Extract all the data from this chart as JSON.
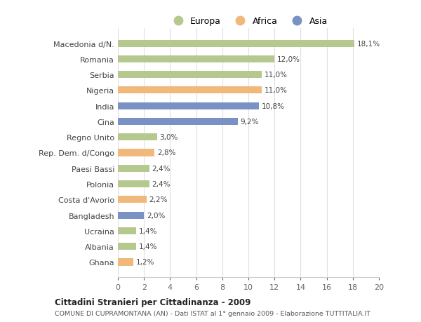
{
  "categories": [
    "Macedonia d/N.",
    "Romania",
    "Serbia",
    "Nigeria",
    "India",
    "Cina",
    "Regno Unito",
    "Rep. Dem. d/Congo",
    "Paesi Bassi",
    "Polonia",
    "Costa d'Avorio",
    "Bangladesh",
    "Ucraina",
    "Albania",
    "Ghana"
  ],
  "values": [
    18.1,
    12.0,
    11.0,
    11.0,
    10.8,
    9.2,
    3.0,
    2.8,
    2.4,
    2.4,
    2.2,
    2.0,
    1.4,
    1.4,
    1.2
  ],
  "labels": [
    "18,1%",
    "12,0%",
    "11,0%",
    "11,0%",
    "10,8%",
    "9,2%",
    "3,0%",
    "2,8%",
    "2,4%",
    "2,4%",
    "2,2%",
    "2,0%",
    "1,4%",
    "1,4%",
    "1,2%"
  ],
  "continent": [
    "Europa",
    "Europa",
    "Europa",
    "Africa",
    "Asia",
    "Asia",
    "Europa",
    "Africa",
    "Europa",
    "Europa",
    "Africa",
    "Asia",
    "Europa",
    "Europa",
    "Africa"
  ],
  "color_europa": "#b5c98e",
  "color_africa": "#f0b87a",
  "color_asia": "#7a91c4",
  "xlim": [
    0,
    20
  ],
  "xticks": [
    0,
    2,
    4,
    6,
    8,
    10,
    12,
    14,
    16,
    18,
    20
  ],
  "title": "Cittadini Stranieri per Cittadinanza - 2009",
  "subtitle": "COMUNE DI CUPRAMONTANA (AN) - Dati ISTAT al 1° gennaio 2009 - Elaborazione TUTTITALIA.IT",
  "background_color": "#ffffff",
  "grid_color": "#e0e0e0",
  "bar_height": 0.45
}
